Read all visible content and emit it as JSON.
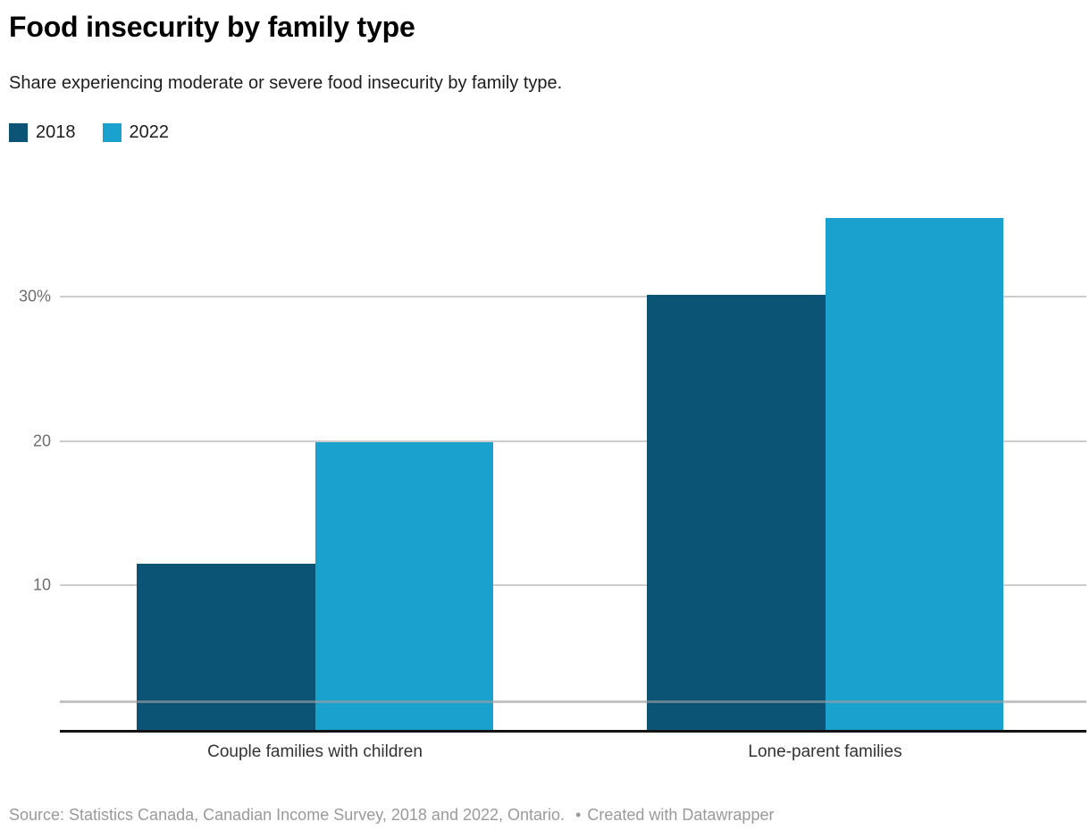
{
  "header": {
    "title": "Food insecurity by family type",
    "subtitle": "Share experiencing moderate or severe food insecurity by family type."
  },
  "legend": {
    "items": [
      {
        "label": "2018",
        "color": "#0b5476"
      },
      {
        "label": "2022",
        "color": "#1aa1cd"
      }
    ]
  },
  "chart_data": {
    "type": "bar",
    "title": "Food insecurity by family type",
    "subtitle": "Share experiencing moderate or severe food insecurity by family type.",
    "categories": [
      "Couple families with children",
      "Lone-parent families"
    ],
    "series": [
      {
        "name": "2018",
        "color": "#0b5476",
        "values": [
          11.5,
          30.1
        ]
      },
      {
        "name": "2022",
        "color": "#1aa1cd",
        "values": [
          19.9,
          35.4
        ]
      }
    ],
    "unit": "%",
    "xlabel": "",
    "ylabel": "",
    "ylim": [
      0,
      38
    ],
    "yticks": [
      {
        "value": 10,
        "label": "10"
      },
      {
        "value": 20,
        "label": "20"
      },
      {
        "value": 30,
        "label": "30%"
      }
    ],
    "grid": "horizontal",
    "gridline_color": "#cccccc",
    "baseline_overlay_value": 2,
    "axis_color": "#131313",
    "legend_position": "top-left"
  },
  "footer": {
    "source": "Source: Statistics Canada, Canadian Income Survey, 2018 and 2022, Ontario.",
    "separator": "•",
    "attribution": "Created with Datawrapper"
  }
}
